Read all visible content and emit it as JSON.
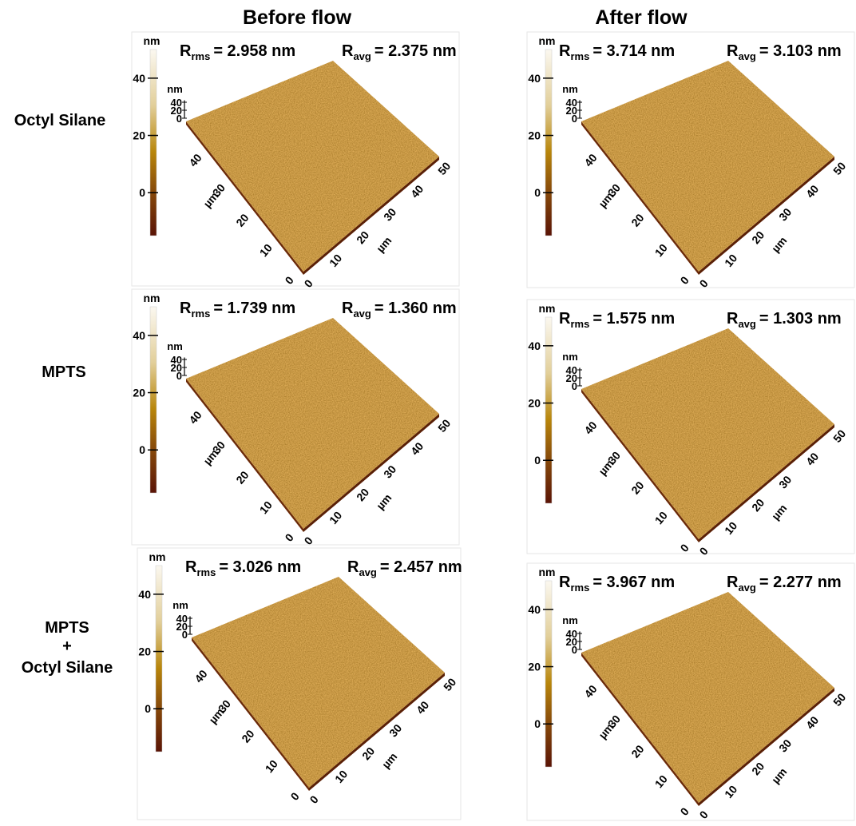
{
  "columns": [
    "Before flow",
    "After flow"
  ],
  "rows": [
    {
      "label": [
        "Octyl Silane"
      ]
    },
    {
      "label": [
        "MPTS"
      ]
    },
    {
      "label": [
        "MPTS",
        "+",
        "Octyl Silane"
      ]
    }
  ],
  "symbol": "R",
  "rms_sub": "rms",
  "avg_sub": "avg",
  "panels": [
    [
      {
        "rms": "= 2.958 nm",
        "avg": "= 2.375 nm"
      },
      {
        "rms": "= 3.714 nm",
        "avg": "= 3.103 nm"
      }
    ],
    [
      {
        "rms": "= 1.739 nm",
        "avg": "= 1.360 nm"
      },
      {
        "rms": "= 1.575 nm",
        "avg": "= 1.303 nm"
      }
    ],
    [
      {
        "rms": "= 3.026 nm",
        "avg": "= 2.457 nm"
      },
      {
        "rms": "= 3.967 nm",
        "avg": "= 2.277 nm"
      }
    ]
  ],
  "colorbar": {
    "unit": "nm",
    "ticks": [
      0,
      20,
      40
    ]
  },
  "z_axis": {
    "unit": "nm",
    "ticks": [
      0,
      20,
      40
    ]
  },
  "xy_axis": {
    "unit": "µm",
    "left_ticks": [
      0,
      10,
      20,
      30,
      40
    ],
    "right_ticks": [
      0,
      10,
      20,
      30,
      40,
      50
    ]
  }
}
